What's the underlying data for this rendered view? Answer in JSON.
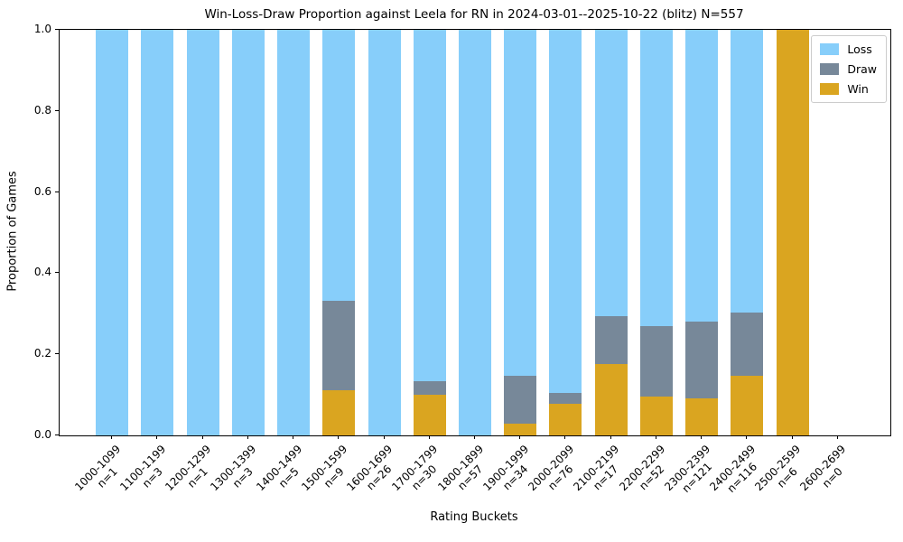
{
  "chart_data": {
    "type": "bar",
    "stacked": true,
    "title": "Win-Loss-Draw Proportion against Leela for RN in 2024-03-01--2025-10-22 (blitz) N=557",
    "xlabel": "Rating Buckets",
    "ylabel": "Proportion of Games",
    "ylim": [
      0.0,
      1.0
    ],
    "yticks": [
      "0.0",
      "0.2",
      "0.4",
      "0.6",
      "0.8",
      "1.0"
    ],
    "grid": false,
    "legend_position": "upper right",
    "categories": [
      {
        "range": "1000-1099",
        "n_label": "n=1"
      },
      {
        "range": "1100-1199",
        "n_label": "n=3"
      },
      {
        "range": "1200-1299",
        "n_label": "n=1"
      },
      {
        "range": "1300-1399",
        "n_label": "n=3"
      },
      {
        "range": "1400-1499",
        "n_label": "n=5"
      },
      {
        "range": "1500-1599",
        "n_label": "n=9"
      },
      {
        "range": "1600-1699",
        "n_label": "n=26"
      },
      {
        "range": "1700-1799",
        "n_label": "n=30"
      },
      {
        "range": "1800-1899",
        "n_label": "n=57"
      },
      {
        "range": "1900-1999",
        "n_label": "n=34"
      },
      {
        "range": "2000-2099",
        "n_label": "n=76"
      },
      {
        "range": "2100-2199",
        "n_label": "n=17"
      },
      {
        "range": "2200-2299",
        "n_label": "n=52"
      },
      {
        "range": "2300-2399",
        "n_label": "n=121"
      },
      {
        "range": "2400-2499",
        "n_label": "n=116"
      },
      {
        "range": "2500-2599",
        "n_label": "n=6"
      },
      {
        "range": "2600-2699",
        "n_label": "n=0"
      }
    ],
    "stack_order_bottom_to_top": [
      "Win",
      "Draw",
      "Loss"
    ],
    "series": [
      {
        "name": "Win",
        "color": "#DAA520",
        "values": [
          0,
          0,
          0,
          0,
          0,
          0.111,
          0,
          0.1,
          0,
          0.029,
          0.079,
          0.176,
          0.096,
          0.091,
          0.147,
          1.0,
          0
        ]
      },
      {
        "name": "Draw",
        "color": "#778899",
        "values": [
          0,
          0,
          0,
          0,
          0,
          0.222,
          0,
          0.033,
          0,
          0.118,
          0.026,
          0.118,
          0.173,
          0.19,
          0.155,
          0,
          0
        ]
      },
      {
        "name": "Loss",
        "color": "#87CEFA",
        "values": [
          1.0,
          1.0,
          1.0,
          1.0,
          1.0,
          0.667,
          1.0,
          0.867,
          1.0,
          0.853,
          0.895,
          0.706,
          0.731,
          0.719,
          0.698,
          0,
          0
        ]
      }
    ],
    "legend_order": [
      "Loss",
      "Draw",
      "Win"
    ]
  }
}
